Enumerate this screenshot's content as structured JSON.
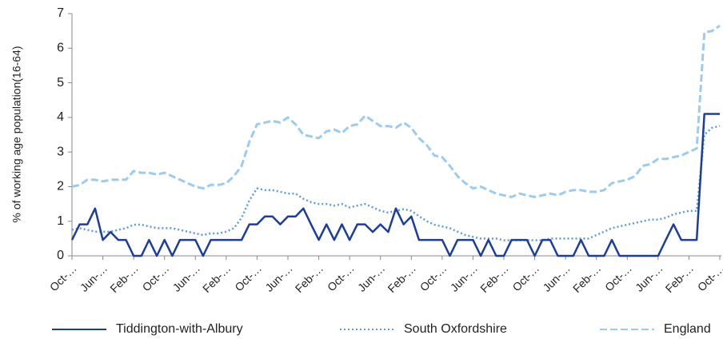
{
  "chart_data": {
    "type": "line",
    "y_label": "% of working age population(16-64)",
    "categories": [
      "Oct-…",
      null,
      null,
      null,
      "Jun-…",
      null,
      null,
      null,
      "Feb-…",
      null,
      null,
      null,
      "Oct-…",
      null,
      null,
      null,
      "Jun-…",
      null,
      null,
      null,
      "Feb-…",
      null,
      null,
      null,
      "Oct-…",
      null,
      null,
      null,
      "Jun-…",
      null,
      null,
      null,
      "Feb-…",
      null,
      null,
      null,
      "Oct-…",
      null,
      null,
      null,
      "Jun-…",
      null,
      null,
      null,
      "Feb-…",
      null,
      null,
      null,
      "Oct-…",
      null,
      null,
      null,
      "Jun-…",
      null,
      null,
      null,
      "Feb-…",
      null,
      null,
      null,
      "Oct-…",
      null,
      null,
      null,
      "Jun-…",
      null,
      null,
      null,
      "Feb-…",
      null,
      null,
      null,
      "Oct-…",
      null,
      null,
      null,
      "Jun-…",
      null,
      null,
      null,
      "Feb-…",
      null,
      null,
      null,
      "Oct-…"
    ],
    "series": [
      {
        "name": "Tiddington-with-Albury",
        "color": "#1a3d9e",
        "style": "solid",
        "values": [
          0.46,
          0.91,
          0.91,
          1.37,
          0.46,
          0.69,
          0.46,
          0.46,
          0,
          0,
          0.46,
          0,
          0.46,
          0,
          0.46,
          0.46,
          0.46,
          0,
          0.46,
          0.46,
          0.46,
          0.46,
          0.46,
          0.91,
          0.91,
          1.14,
          1.14,
          0.91,
          1.14,
          1.14,
          1.37,
          0.91,
          0.46,
          0.91,
          0.46,
          0.91,
          0.46,
          0.91,
          0.91,
          0.69,
          0.91,
          0.69,
          1.37,
          0.91,
          1.14,
          0.46,
          0.46,
          0.46,
          0.46,
          0,
          0.46,
          0.46,
          0.46,
          0,
          0.46,
          0,
          0,
          0.46,
          0.46,
          0.46,
          0,
          0.46,
          0.46,
          0,
          0,
          0,
          0.46,
          0,
          0,
          0,
          0.46,
          0,
          0,
          0,
          0,
          0,
          0,
          0.46,
          0.91,
          0.46,
          0.46,
          0.46,
          4.1,
          4.1,
          4.1
        ]
      },
      {
        "name": "South Oxfordshire",
        "color": "#5b9be0",
        "style": "dotted",
        "values": [
          0.75,
          0.8,
          0.75,
          0.7,
          0.7,
          0.7,
          0.75,
          0.8,
          0.9,
          0.9,
          0.85,
          0.8,
          0.8,
          0.8,
          0.75,
          0.7,
          0.65,
          0.6,
          0.65,
          0.65,
          0.7,
          0.8,
          1.1,
          1.6,
          1.95,
          1.9,
          1.9,
          1.85,
          1.8,
          1.8,
          1.65,
          1.55,
          1.5,
          1.5,
          1.45,
          1.5,
          1.4,
          1.45,
          1.5,
          1.4,
          1.3,
          1.25,
          1.3,
          1.35,
          1.3,
          1.15,
          1.0,
          0.9,
          0.85,
          0.8,
          0.7,
          0.6,
          0.55,
          0.5,
          0.5,
          0.5,
          0.45,
          0.45,
          0.45,
          0.45,
          0.45,
          0.45,
          0.5,
          0.5,
          0.5,
          0.5,
          0.5,
          0.5,
          0.6,
          0.7,
          0.8,
          0.85,
          0.9,
          0.95,
          1.0,
          1.05,
          1.05,
          1.1,
          1.2,
          1.25,
          1.3,
          1.3,
          3.5,
          3.7,
          3.75
        ]
      },
      {
        "name": "England",
        "color": "#9ccbf2",
        "style": "dashed",
        "values": [
          2.0,
          2.05,
          2.2,
          2.2,
          2.15,
          2.2,
          2.2,
          2.2,
          2.45,
          2.4,
          2.4,
          2.35,
          2.4,
          2.3,
          2.2,
          2.1,
          2.0,
          1.95,
          2.05,
          2.05,
          2.1,
          2.3,
          2.6,
          3.3,
          3.8,
          3.85,
          3.9,
          3.85,
          4.0,
          3.8,
          3.5,
          3.45,
          3.4,
          3.6,
          3.65,
          3.55,
          3.75,
          3.8,
          4.05,
          3.9,
          3.75,
          3.75,
          3.7,
          3.85,
          3.7,
          3.4,
          3.2,
          2.9,
          2.85,
          2.6,
          2.3,
          2.1,
          1.95,
          2.0,
          1.9,
          1.8,
          1.75,
          1.7,
          1.8,
          1.75,
          1.7,
          1.75,
          1.8,
          1.75,
          1.85,
          1.9,
          1.9,
          1.85,
          1.85,
          1.9,
          2.1,
          2.15,
          2.2,
          2.3,
          2.6,
          2.65,
          2.8,
          2.8,
          2.85,
          2.9,
          3.0,
          3.1,
          6.45,
          6.5,
          6.65
        ]
      }
    ],
    "ylim": [
      0,
      7
    ],
    "yticks": [
      0,
      1,
      2,
      3,
      4,
      5,
      6,
      7
    ],
    "grid": false,
    "legend": "bottom"
  }
}
